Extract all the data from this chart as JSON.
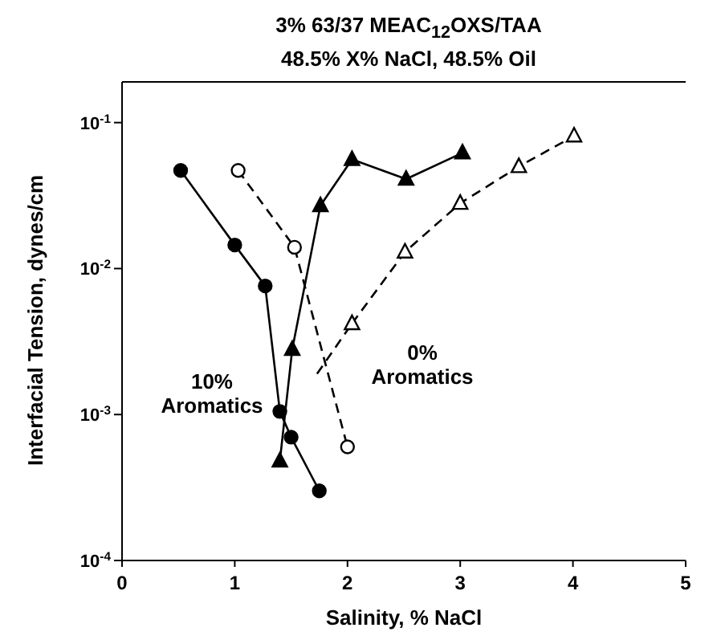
{
  "chart_data": {
    "type": "line",
    "title": "3% 63/37 MEAC$_{12}$OXS/TAA",
    "subtitle": "48.5% X% NaCl, 48.5% Oil",
    "xlabel": "Salinity, % NaCl",
    "ylabel": "Interfacial Tension, dynes/cm",
    "log": "y",
    "xlim": [
      0,
      5
    ],
    "xticks": [
      0,
      1,
      2,
      3,
      4,
      5
    ],
    "ylim": [
      0.0001,
      0.19
    ],
    "yticks": [
      {
        "value": 0.0001,
        "label": "10$^{-4}$"
      },
      {
        "value": 0.001,
        "label": "10$^{-3}$"
      },
      {
        "value": 0.01,
        "label": "10$^{-2}$"
      },
      {
        "value": 0.1,
        "label": "10$^{-1}$"
      }
    ],
    "series": [
      {
        "color": "#000000",
        "marker": "circle",
        "line_style": "solid",
        "x": [
          0.52,
          1.0,
          1.27,
          1.4,
          1.5,
          1.75
        ],
        "values": [
          0.047,
          0.0145,
          0.0076,
          0.00105,
          0.0007,
          0.0003
        ]
      },
      {
        "color": "#000000",
        "marker": "triangle",
        "line_style": "solid",
        "x": [
          1.4,
          1.51,
          1.76,
          2.04,
          2.52,
          3.02
        ],
        "values": [
          0.00048,
          0.0028,
          0.027,
          0.056,
          0.041,
          0.062
        ]
      },
      {
        "color": "#000000",
        "marker": "circle",
        "line_style": "dashed",
        "x": [
          1.03,
          1.53,
          2.0
        ],
        "values": [
          0.047,
          0.014,
          0.0006
        ]
      },
      {
        "color": "#000000",
        "line_style": "dashed",
        "x": [
          1.73,
          2.04
        ],
        "values": [
          0.0019,
          0.0042
        ]
      },
      {
        "color": "#000000",
        "marker": "triangle",
        "line_style": "dashed",
        "x": [
          2.04,
          2.51,
          3.0,
          3.52,
          4.01
        ],
        "values": [
          0.0042,
          0.013,
          0.028,
          0.05,
          0.081
        ]
      }
    ],
    "annotations": [
      "10%\nAromatics",
      "0%\nAromatics"
    ]
  }
}
